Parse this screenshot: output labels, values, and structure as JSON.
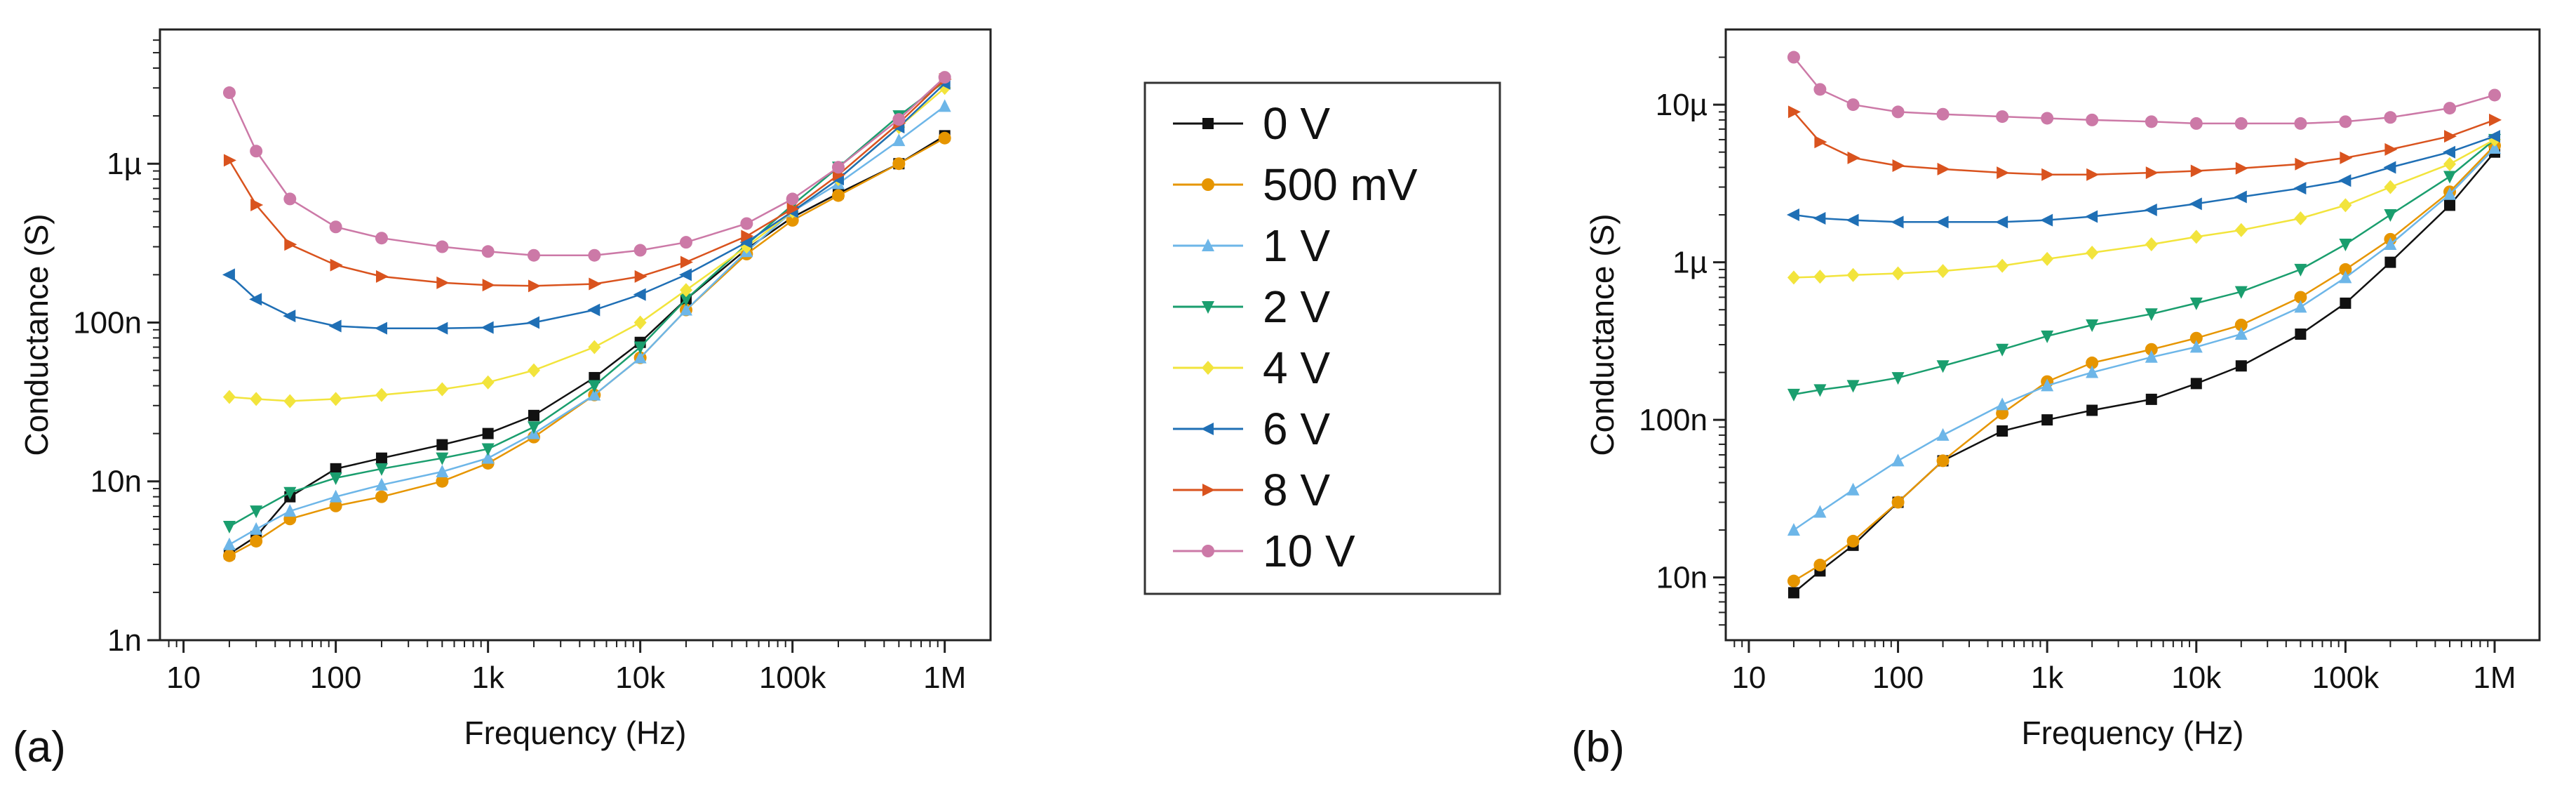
{
  "chart_data": [
    {
      "type": "line",
      "panel_label": "(a)",
      "xlabel": "Frequency (Hz)",
      "ylabel": "Conductance (S)",
      "xscale": "log",
      "yscale": "log",
      "xlim": [
        7,
        2000000
      ],
      "ylim": [
        1e-09,
        7e-06
      ],
      "xticks": [
        {
          "value": 10,
          "label": "10"
        },
        {
          "value": 100,
          "label": "100"
        },
        {
          "value": 1000,
          "label": "1k"
        },
        {
          "value": 10000,
          "label": "10k"
        },
        {
          "value": 100000,
          "label": "100k"
        },
        {
          "value": 1000000,
          "label": "1M"
        }
      ],
      "yticks": [
        {
          "value": 1e-09,
          "label": "1n"
        },
        {
          "value": 1e-08,
          "label": "10n"
        },
        {
          "value": 1e-07,
          "label": "100n"
        },
        {
          "value": 1e-06,
          "label": "1µ"
        }
      ],
      "series": [
        {
          "name": "0 V",
          "color": "#111111",
          "marker": "square",
          "x": [
            20,
            30,
            50,
            100,
            200,
            500,
            1000,
            2000,
            5000,
            10000,
            20000,
            50000,
            100000,
            200000,
            500000,
            1000000
          ],
          "y": [
            3.5e-09,
            4.5e-09,
            8e-09,
            1.2e-08,
            1.4e-08,
            1.7e-08,
            2e-08,
            2.6e-08,
            4.5e-08,
            7.5e-08,
            1.4e-07,
            2.9e-07,
            4.6e-07,
            6.5e-07,
            1e-06,
            1.5e-06
          ]
        },
        {
          "name": "500 mV",
          "color": "#E69500",
          "marker": "circle",
          "x": [
            20,
            30,
            50,
            100,
            200,
            500,
            1000,
            2000,
            5000,
            10000,
            20000,
            50000,
            100000,
            200000,
            500000,
            1000000
          ],
          "y": [
            3.4e-09,
            4.2e-09,
            5.8e-09,
            7e-09,
            8e-09,
            1e-08,
            1.3e-08,
            1.9e-08,
            3.5e-08,
            6e-08,
            1.2e-07,
            2.7e-07,
            4.4e-07,
            6.3e-07,
            1e-06,
            1.45e-06
          ]
        },
        {
          "name": "1 V",
          "color": "#6DB6E8",
          "marker": "triangle-up",
          "x": [
            20,
            30,
            50,
            100,
            200,
            500,
            1000,
            2000,
            5000,
            10000,
            20000,
            50000,
            100000,
            200000,
            500000,
            1000000
          ],
          "y": [
            4e-09,
            5e-09,
            6.5e-09,
            8e-09,
            9.5e-09,
            1.15e-08,
            1.4e-08,
            2e-08,
            3.5e-08,
            6e-08,
            1.2e-07,
            2.8e-07,
            5e-07,
            7.5e-07,
            1.4e-06,
            2.3e-06
          ]
        },
        {
          "name": "2 V",
          "color": "#1A9E6E",
          "marker": "triangle-down",
          "x": [
            20,
            30,
            50,
            100,
            200,
            500,
            1000,
            2000,
            5000,
            10000,
            20000,
            50000,
            100000,
            200000,
            500000,
            1000000
          ],
          "y": [
            5.2e-09,
            6.5e-09,
            8.5e-09,
            1.05e-08,
            1.2e-08,
            1.4e-08,
            1.6e-08,
            2.2e-08,
            4e-08,
            7e-08,
            1.4e-07,
            3.1e-07,
            5.5e-07,
            9.5e-07,
            2e-06,
            3.3e-06
          ]
        },
        {
          "name": "4 V",
          "color": "#F2E43C",
          "marker": "diamond",
          "x": [
            20,
            30,
            50,
            100,
            200,
            500,
            1000,
            2000,
            5000,
            10000,
            20000,
            50000,
            100000,
            200000,
            500000,
            1000000
          ],
          "y": [
            3.4e-08,
            3.3e-08,
            3.2e-08,
            3.3e-08,
            3.5e-08,
            3.8e-08,
            4.2e-08,
            5e-08,
            7e-08,
            1e-07,
            1.6e-07,
            3e-07,
            5e-07,
            8e-07,
            1.7e-06,
            3e-06
          ]
        },
        {
          "name": "6 V",
          "color": "#1F6FB5",
          "marker": "triangle-left",
          "x": [
            20,
            30,
            50,
            100,
            200,
            500,
            1000,
            2000,
            5000,
            10000,
            20000,
            50000,
            100000,
            200000,
            500000,
            1000000
          ],
          "y": [
            2e-07,
            1.4e-07,
            1.1e-07,
            9.5e-08,
            9.2e-08,
            9.2e-08,
            9.3e-08,
            1e-07,
            1.2e-07,
            1.5e-07,
            2e-07,
            3.2e-07,
            5e-07,
            8e-07,
            1.7e-06,
            3.2e-06
          ]
        },
        {
          "name": "8 V",
          "color": "#D9531E",
          "marker": "triangle-right",
          "x": [
            20,
            30,
            50,
            100,
            200,
            500,
            1000,
            2000,
            5000,
            10000,
            20000,
            50000,
            100000,
            200000,
            500000,
            1000000
          ],
          "y": [
            1.05e-06,
            5.5e-07,
            3.1e-07,
            2.3e-07,
            1.95e-07,
            1.78e-07,
            1.72e-07,
            1.7e-07,
            1.75e-07,
            1.95e-07,
            2.4e-07,
            3.5e-07,
            5.2e-07,
            8.5e-07,
            1.8e-06,
            3.4e-06
          ]
        },
        {
          "name": "10 V",
          "color": "#CC79A7",
          "marker": "circle",
          "x": [
            20,
            30,
            50,
            100,
            200,
            500,
            1000,
            2000,
            5000,
            10000,
            20000,
            50000,
            100000,
            200000,
            500000,
            1000000
          ],
          "y": [
            2.8e-06,
            1.2e-06,
            6e-07,
            4e-07,
            3.4e-07,
            3e-07,
            2.8e-07,
            2.65e-07,
            2.65e-07,
            2.85e-07,
            3.2e-07,
            4.2e-07,
            6e-07,
            9.5e-07,
            1.9e-06,
            3.5e-06
          ]
        }
      ]
    },
    {
      "type": "line",
      "panel_label": "(b)",
      "xlabel": "Frequency (Hz)",
      "ylabel": "Conductance (S)",
      "xscale": "log",
      "yscale": "log",
      "xlim": [
        7,
        2000000
      ],
      "ylim": [
        4e-09,
        3e-05
      ],
      "xticks": [
        {
          "value": 10,
          "label": "10"
        },
        {
          "value": 100,
          "label": "100"
        },
        {
          "value": 1000,
          "label": "1k"
        },
        {
          "value": 10000,
          "label": "10k"
        },
        {
          "value": 100000,
          "label": "100k"
        },
        {
          "value": 1000000,
          "label": "1M"
        }
      ],
      "yticks": [
        {
          "value": 1e-08,
          "label": "10n"
        },
        {
          "value": 1e-07,
          "label": "100n"
        },
        {
          "value": 1e-06,
          "label": "1µ"
        },
        {
          "value": 1e-05,
          "label": "10µ"
        }
      ],
      "series": [
        {
          "name": "0 V",
          "color": "#111111",
          "marker": "square",
          "x": [
            20,
            30,
            50,
            100,
            200,
            500,
            1000,
            2000,
            5000,
            10000,
            20000,
            50000,
            100000,
            200000,
            500000,
            1000000
          ],
          "y": [
            8e-09,
            1.1e-08,
            1.6e-08,
            3e-08,
            5.5e-08,
            8.5e-08,
            1e-07,
            1.15e-07,
            1.35e-07,
            1.7e-07,
            2.2e-07,
            3.5e-07,
            5.5e-07,
            1e-06,
            2.3e-06,
            5e-06
          ]
        },
        {
          "name": "500 mV",
          "color": "#E69500",
          "marker": "circle",
          "x": [
            20,
            30,
            50,
            100,
            200,
            500,
            1000,
            2000,
            5000,
            10000,
            20000,
            50000,
            100000,
            200000,
            500000,
            1000000
          ],
          "y": [
            9.5e-09,
            1.2e-08,
            1.7e-08,
            3e-08,
            5.5e-08,
            1.1e-07,
            1.75e-07,
            2.3e-07,
            2.8e-07,
            3.3e-07,
            4e-07,
            6e-07,
            9e-07,
            1.4e-06,
            2.8e-06,
            5.5e-06
          ]
        },
        {
          "name": "1 V",
          "color": "#6DB6E8",
          "marker": "triangle-up",
          "x": [
            20,
            30,
            50,
            100,
            200,
            500,
            1000,
            2000,
            5000,
            10000,
            20000,
            50000,
            100000,
            200000,
            500000,
            1000000
          ],
          "y": [
            2e-08,
            2.6e-08,
            3.6e-08,
            5.5e-08,
            8e-08,
            1.25e-07,
            1.65e-07,
            2e-07,
            2.5e-07,
            2.9e-07,
            3.5e-07,
            5.2e-07,
            8e-07,
            1.3e-06,
            2.7e-06,
            5.3e-06
          ]
        },
        {
          "name": "2 V",
          "color": "#1A9E6E",
          "marker": "triangle-down",
          "x": [
            20,
            30,
            50,
            100,
            200,
            500,
            1000,
            2000,
            5000,
            10000,
            20000,
            50000,
            100000,
            200000,
            500000,
            1000000
          ],
          "y": [
            1.45e-07,
            1.55e-07,
            1.65e-07,
            1.85e-07,
            2.2e-07,
            2.8e-07,
            3.4e-07,
            4e-07,
            4.7e-07,
            5.5e-07,
            6.5e-07,
            9e-07,
            1.3e-06,
            2e-06,
            3.5e-06,
            6e-06
          ]
        },
        {
          "name": "4 V",
          "color": "#F2E43C",
          "marker": "diamond",
          "x": [
            20,
            30,
            50,
            100,
            200,
            500,
            1000,
            2000,
            5000,
            10000,
            20000,
            50000,
            100000,
            200000,
            500000,
            1000000
          ],
          "y": [
            8e-07,
            8.1e-07,
            8.3e-07,
            8.5e-07,
            8.8e-07,
            9.5e-07,
            1.05e-06,
            1.15e-06,
            1.3e-06,
            1.45e-06,
            1.6e-06,
            1.9e-06,
            2.3e-06,
            3e-06,
            4.2e-06,
            6e-06
          ]
        },
        {
          "name": "6 V",
          "color": "#1F6FB5",
          "marker": "triangle-left",
          "x": [
            20,
            30,
            50,
            100,
            200,
            500,
            1000,
            2000,
            5000,
            10000,
            20000,
            50000,
            100000,
            200000,
            500000,
            1000000
          ],
          "y": [
            2e-06,
            1.9e-06,
            1.85e-06,
            1.8e-06,
            1.8e-06,
            1.8e-06,
            1.85e-06,
            1.95e-06,
            2.15e-06,
            2.35e-06,
            2.6e-06,
            2.95e-06,
            3.3e-06,
            4e-06,
            5e-06,
            6.3e-06
          ]
        },
        {
          "name": "8 V",
          "color": "#D9531E",
          "marker": "triangle-right",
          "x": [
            20,
            30,
            50,
            100,
            200,
            500,
            1000,
            2000,
            5000,
            10000,
            20000,
            50000,
            100000,
            200000,
            500000,
            1000000
          ],
          "y": [
            9e-06,
            5.8e-06,
            4.6e-06,
            4.1e-06,
            3.9e-06,
            3.7e-06,
            3.6e-06,
            3.6e-06,
            3.7e-06,
            3.8e-06,
            3.95e-06,
            4.2e-06,
            4.6e-06,
            5.2e-06,
            6.3e-06,
            8e-06
          ]
        },
        {
          "name": "10 V",
          "color": "#CC79A7",
          "marker": "circle",
          "x": [
            20,
            30,
            50,
            100,
            200,
            500,
            1000,
            2000,
            5000,
            10000,
            20000,
            50000,
            100000,
            200000,
            500000,
            1000000
          ],
          "y": [
            2e-05,
            1.25e-05,
            1e-05,
            9e-06,
            8.7e-06,
            8.4e-06,
            8.2e-06,
            8e-06,
            7.8e-06,
            7.6e-06,
            7.6e-06,
            7.6e-06,
            7.8e-06,
            8.3e-06,
            9.5e-06,
            1.15e-05
          ]
        }
      ]
    }
  ]
}
